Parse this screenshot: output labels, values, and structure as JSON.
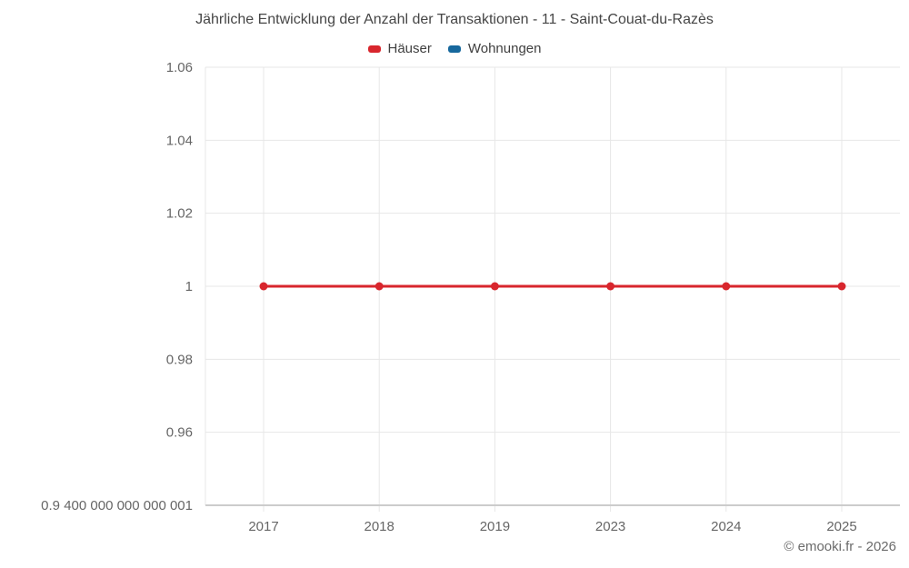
{
  "title": "Jährliche Entwicklung der Anzahl der Transaktionen - 11 - Saint-Couat-du-Razès",
  "legend": {
    "items": [
      {
        "label": "Häuser",
        "color": "#d8262d"
      },
      {
        "label": "Wohnungen",
        "color": "#17689d"
      }
    ]
  },
  "footer": {
    "credit": "© emooki.fr - 2026"
  },
  "colors": {
    "grid": "#e7e7e7",
    "axis_line": "#cccccc",
    "tick_label": "#666666",
    "title_text": "#464646"
  },
  "chart_data": {
    "type": "line",
    "categories": [
      "2017",
      "2018",
      "2019",
      "2023",
      "2024",
      "2025"
    ],
    "series": [
      {
        "name": "Häuser",
        "color": "#d8262d",
        "values": [
          1,
          1,
          1,
          1,
          1,
          1
        ]
      },
      {
        "name": "Wohnungen",
        "color": "#17689d",
        "values": []
      }
    ],
    "yticks": [
      {
        "label": "1.06",
        "value": 1.06
      },
      {
        "label": "1.04",
        "value": 1.04
      },
      {
        "label": "1.02",
        "value": 1.02
      },
      {
        "label": "1",
        "value": 1
      },
      {
        "label": "0.98",
        "value": 0.98
      },
      {
        "label": "0.96",
        "value": 0.96
      },
      {
        "label": "0.9 400 000 000 000 001",
        "value": 0.94
      }
    ],
    "ylim": [
      0.94,
      1.06
    ],
    "grid": true,
    "legend_position": "top",
    "title": "Jährliche Entwicklung der Anzahl der Transaktionen - 11 - Saint-Couat-du-Razès",
    "xlabel": "",
    "ylabel": ""
  }
}
